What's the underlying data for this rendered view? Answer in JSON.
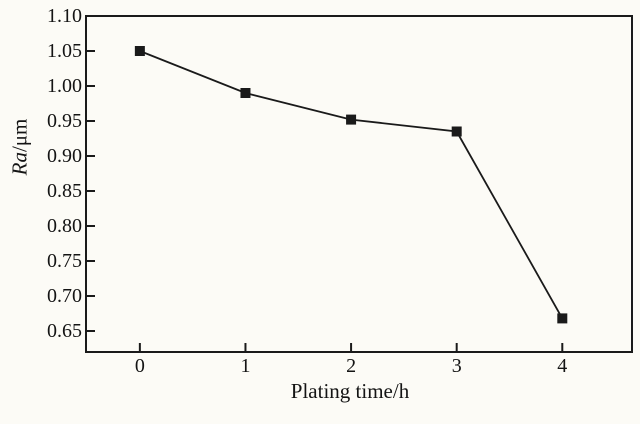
{
  "figure": {
    "background_color": "#fcfbf6",
    "ink_color": "#1a1a1a"
  },
  "chart_data": {
    "type": "line",
    "title": "",
    "xlabel": "Plating time/h",
    "ylabel": "Ra/μm",
    "ylabel_symbol": "Ra",
    "ylabel_unit": "/μm",
    "series": [
      {
        "name": "Ra",
        "x": [
          0,
          1,
          2,
          3,
          4
        ],
        "y": [
          1.05,
          0.99,
          0.952,
          0.935,
          0.668
        ],
        "marker": "filled-square",
        "line_style": "solid",
        "color": "#1a1a1a"
      }
    ],
    "x_ticks": [
      0,
      1,
      2,
      3,
      4
    ],
    "x_tick_labels": [
      "0",
      "1",
      "2",
      "3",
      "4"
    ],
    "y_ticks": [
      0.65,
      0.7,
      0.75,
      0.8,
      0.85,
      0.9,
      0.95,
      1.0,
      1.05,
      1.1
    ],
    "y_tick_labels": [
      "0.65",
      "0.70",
      "0.75",
      "0.80",
      "0.85",
      "0.90",
      "0.95",
      "1.00",
      "1.05",
      "1.10"
    ],
    "xlim": [
      -0.51,
      4.66
    ],
    "ylim": [
      0.62,
      1.1
    ],
    "grid": false,
    "legend": "none",
    "tick_direction": "in",
    "frame": "box"
  }
}
